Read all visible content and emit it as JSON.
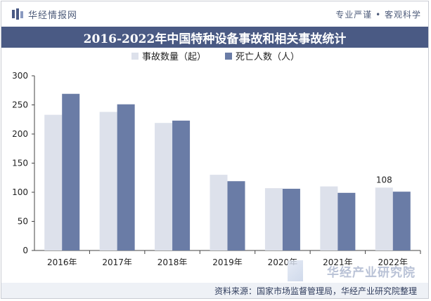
{
  "header": {
    "brand": "华经情报网",
    "slogan": "专业严谨 • 客观科学"
  },
  "watermark": {
    "text": "华经产业研究院"
  },
  "footer": {
    "source": "资料来源：国家市场监督管理局，华经产业研究院整理"
  },
  "colors": {
    "title_bar": "#4a5a84",
    "series_1": "#dde1eb",
    "series_2": "#6a7ca6",
    "axis": "#444444"
  },
  "chart_data": {
    "type": "bar",
    "title": "2016-2022年中国特种设备事故和相关事故统计",
    "categories": [
      "2016年",
      "2017年",
      "2018年",
      "2019年",
      "2020年",
      "2021年",
      "2022年"
    ],
    "series": [
      {
        "name": "事故数量（起）",
        "values": [
          233,
          238,
          219,
          130,
          107,
          110,
          108
        ]
      },
      {
        "name": "死亡人数（人）",
        "values": [
          269,
          251,
          223,
          119,
          106,
          99,
          101
        ]
      }
    ],
    "data_labels": [
      {
        "series": 0,
        "index": 6,
        "text": "108"
      }
    ],
    "ylim": [
      0,
      300
    ],
    "yticks": [
      0,
      50,
      100,
      150,
      200,
      250,
      300
    ],
    "xlabel": "",
    "ylabel": "",
    "legend": "top-center",
    "grid": false
  }
}
